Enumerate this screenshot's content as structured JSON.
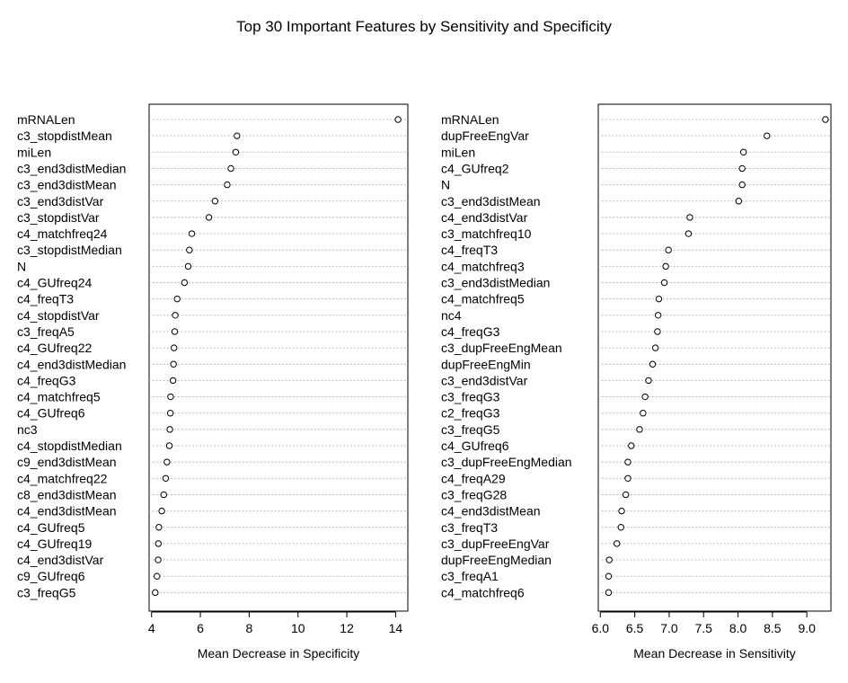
{
  "title": "Top 30 Important Features by Sensitivity and Specificity",
  "chart_data": [
    {
      "type": "scatter",
      "style": "dotchart",
      "xlabel": "Mean Decrease in Specificity",
      "xlim": [
        3.9,
        14.5
      ],
      "ticks": [
        4,
        6,
        8,
        10,
        12,
        14
      ],
      "tick_labels": [
        "4",
        "6",
        "8",
        "10",
        "12",
        "14"
      ],
      "grid": "dotted horizontal",
      "categories": [
        "mRNALen",
        "c3_stopdistMean",
        "miLen",
        "c3_end3distMedian",
        "c3_end3distMean",
        "c3_end3distVar",
        "c3_stopdistVar",
        "c4_matchfreq24",
        "c3_stopdistMedian",
        "N",
        "c4_GUfreq24",
        "c4_freqT3",
        "c4_stopdistVar",
        "c3_freqA5",
        "c4_GUfreq22",
        "c4_end3distMedian",
        "c4_freqG3",
        "c4_matchfreq5",
        "c4_GUfreq6",
        "nc3",
        "c4_stopdistMedian",
        "c9_end3distMean",
        "c4_matchfreq22",
        "c8_end3distMean",
        "c4_end3distMean",
        "c4_GUfreq5",
        "c4_GUfreq19",
        "c4_end3distVar",
        "c9_GUfreq6",
        "c3_freqG5"
      ],
      "values": [
        14.1,
        7.5,
        7.45,
        7.25,
        7.1,
        6.6,
        6.35,
        5.65,
        5.55,
        5.5,
        5.35,
        5.05,
        4.97,
        4.95,
        4.92,
        4.9,
        4.88,
        4.78,
        4.77,
        4.75,
        4.73,
        4.63,
        4.58,
        4.5,
        4.42,
        4.3,
        4.28,
        4.27,
        4.22,
        4.15
      ]
    },
    {
      "type": "scatter",
      "style": "dotchart",
      "xlabel": "Mean Decrease in Sensitivity",
      "xlim": [
        5.97,
        9.35
      ],
      "ticks": [
        6.0,
        6.5,
        7.0,
        7.5,
        8.0,
        8.5,
        9.0
      ],
      "tick_labels": [
        "6.0",
        "6.5",
        "7.0",
        "7.5",
        "8.0",
        "8.5",
        "9.0"
      ],
      "grid": "dotted horizontal",
      "categories": [
        "mRNALen",
        "dupFreeEngVar",
        "miLen",
        "c4_GUfreq2",
        "N",
        "c3_end3distMean",
        "c4_end3distVar",
        "c3_matchfreq10",
        "c4_freqT3",
        "c4_matchfreq3",
        "c3_end3distMedian",
        "c4_matchfreq5",
        "nc4",
        "c4_freqG3",
        "c3_dupFreeEngMean",
        "dupFreeEngMin",
        "c3_end3distVar",
        "c3_freqG3",
        "c2_freqG3",
        "c3_freqG5",
        "c4_GUfreq6",
        "c3_dupFreeEngMedian",
        "c4_freqA29",
        "c3_freqG28",
        "c4_end3distMean",
        "c3_freqT3",
        "c3_dupFreeEngVar",
        "dupFreeEngMedian",
        "c3_freqA1",
        "c4_matchfreq6"
      ],
      "values": [
        9.27,
        8.42,
        8.08,
        8.06,
        8.06,
        8.01,
        7.3,
        7.28,
        6.99,
        6.95,
        6.93,
        6.85,
        6.84,
        6.83,
        6.8,
        6.76,
        6.7,
        6.65,
        6.62,
        6.57,
        6.45,
        6.4,
        6.4,
        6.37,
        6.31,
        6.3,
        6.24,
        6.13,
        6.12,
        6.12
      ]
    }
  ]
}
